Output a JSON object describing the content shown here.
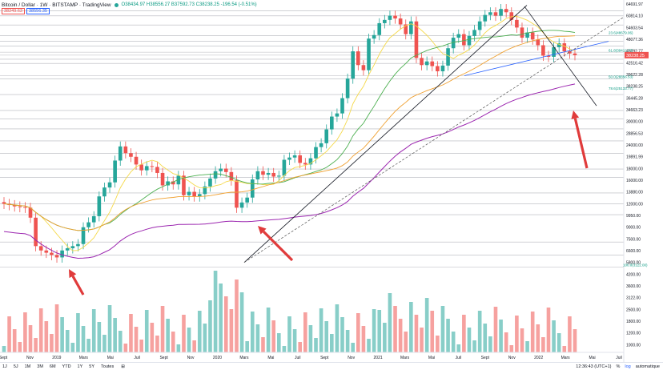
{
  "header": {
    "title": "Bitcoin / Dollar · 1W · BITSTAMP · TradingView",
    "ohlc": "O38434.97 H38556.27 B37592.73 C38238.25 -196.54 (-0.51%)",
    "sell_price": "38249.63",
    "buy_price": "38556.35"
  },
  "colors": {
    "up": "#26a69a",
    "down": "#ef5350",
    "ma_yellow": "#f5d94a",
    "ma_green": "#4caf50",
    "ma_orange": "#f0a030",
    "ma_purple": "#9c27b0",
    "arrow": "#e03b3b"
  },
  "chart_data": {
    "type": "candlestick",
    "title": "Bitcoin / Dollar · 1W · BITSTAMP",
    "xlabel": "",
    "ylabel": "",
    "x_ticks": [
      "Sept",
      "Nov",
      "2019",
      "Mars",
      "Mai",
      "Juil",
      "Sept",
      "Nov",
      "2020",
      "Mars",
      "Mai",
      "Juil",
      "Sept",
      "Nov",
      "2021",
      "Mars",
      "Mai",
      "Juil",
      "Sept",
      "Nov",
      "2022",
      "Mars",
      "Mai",
      "Juil"
    ],
    "y_ticks": [
      "64691.97",
      "60814.10",
      "54603.54",
      "48077.36",
      "45092.77",
      "42516.42",
      "39622.28",
      "38238.25",
      "36445.28",
      "34663.23",
      "30000.00",
      "28856.53",
      "24000.00",
      "19891.99",
      "18000.00",
      "16000.00",
      "13880.00",
      "12000.00",
      "9950.00",
      "9000.00",
      "7500.00",
      "6600.00",
      "5800.00",
      "4200.00",
      "3600.00",
      "3122.00",
      "2500.00",
      "1800.00",
      "1200.00",
      "1000.00"
    ],
    "fib_labels": [
      "23.6(48679.06)",
      "61.8(39412.73)",
      "78.6(25133.77)",
      "100.0(3122.00)",
      "50.0(28856.53)"
    ],
    "price_label": "38238.25",
    "weekly_close_approx": [
      6600,
      6500,
      6400,
      6350,
      6300,
      5600,
      4000,
      3800,
      3700,
      3600,
      3500,
      3800,
      3900,
      4000,
      4100,
      5000,
      5300,
      5700,
      7200,
      8000,
      8500,
      11000,
      13000,
      12000,
      11500,
      10500,
      9800,
      10300,
      10200,
      9500,
      8200,
      8600,
      8300,
      9200,
      7300,
      7600,
      7200,
      7400,
      8100,
      8900,
      9700,
      10000,
      9600,
      8700,
      6300,
      6700,
      7100,
      8800,
      9700,
      9300,
      9500,
      9100,
      9200,
      11100,
      11400,
      11700,
      10700,
      10500,
      11300,
      12900,
      13500,
      15900,
      18500,
      19200,
      23000,
      29000,
      40000,
      34000,
      32000,
      46500,
      48500,
      55800,
      58000,
      61000,
      59000,
      55000,
      49000,
      57000,
      37000,
      34000,
      35500,
      33600,
      31600,
      33800,
      41500,
      47000,
      49000,
      43000,
      48000,
      51500,
      57000,
      61500,
      63500,
      61000,
      66000,
      63500,
      58000,
      53000,
      47000,
      50000,
      46000,
      43000,
      38000,
      37500,
      42000,
      44000,
      40000,
      39000,
      38238
    ],
    "volume_note": "weekly volume bars below price, teal/red",
    "annotations": [
      "red arrows pointing to MA200 touches (2019, 2020, now)",
      "black uptrend line from 2020 low",
      "dashed trendline",
      "descending trendline from ATH"
    ]
  },
  "bottom": {
    "ranges": [
      "1J",
      "5J",
      "1M",
      "3M",
      "6M",
      "YTD",
      "1Y",
      "5Y",
      "Toutes"
    ],
    "calendar": "⊞",
    "time": "12:36:43 (UTC+1)",
    "pct": "%",
    "log": "log",
    "auto": "automatique"
  }
}
